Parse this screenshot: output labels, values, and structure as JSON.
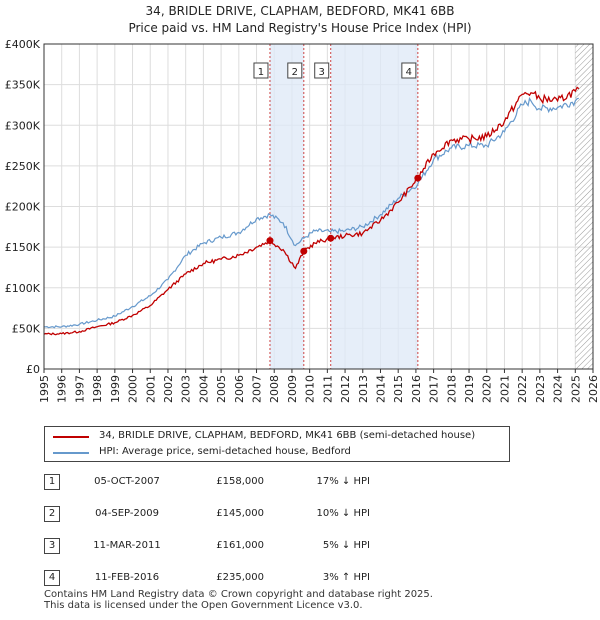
{
  "header": {
    "title_line1": "34, BRIDLE DRIVE, CLAPHAM, BEDFORD, MK41 6BB",
    "title_line2": "Price paid vs. HM Land Registry's House Price Index (HPI)"
  },
  "legend": {
    "items": [
      {
        "label": "34, BRIDLE DRIVE, CLAPHAM, BEDFORD, MK41 6BB (semi-detached house)",
        "color": "#c00000"
      },
      {
        "label": "HPI: Average price, semi-detached house, Bedford",
        "color": "#6699cc"
      }
    ]
  },
  "sales": [
    {
      "num": "1",
      "date": "05-OCT-2007",
      "price": "£158,000",
      "hpi": "17% ↓ HPI"
    },
    {
      "num": "2",
      "date": "04-SEP-2009",
      "price": "£145,000",
      "hpi": "10% ↓ HPI"
    },
    {
      "num": "3",
      "date": "11-MAR-2011",
      "price": "£161,000",
      "hpi": "5% ↓ HPI"
    },
    {
      "num": "4",
      "date": "11-FEB-2016",
      "price": "£235,000",
      "hpi": "3% ↑ HPI"
    }
  ],
  "footer": {
    "line1": "Contains HM Land Registry data © Crown copyright and database right 2025.",
    "line2": "This data is licensed under the Open Government Licence v3.0."
  },
  "chart_data": {
    "type": "line",
    "title": "Price paid vs. HM Land Registry's House Price Index (HPI)",
    "ylim": [
      0,
      400000
    ],
    "xlim": [
      1995,
      2026
    ],
    "y_ticks": [
      0,
      50000,
      100000,
      150000,
      200000,
      250000,
      300000,
      350000,
      400000
    ],
    "y_tick_labels": [
      "£0",
      "£50K",
      "£100K",
      "£150K",
      "£200K",
      "£250K",
      "£300K",
      "£350K",
      "£400K"
    ],
    "x_ticks": [
      1995,
      1996,
      1997,
      1998,
      1999,
      2000,
      2001,
      2002,
      2003,
      2004,
      2005,
      2006,
      2007,
      2008,
      2009,
      2010,
      2011,
      2012,
      2013,
      2014,
      2015,
      2016,
      2017,
      2018,
      2019,
      2020,
      2021,
      2022,
      2023,
      2024,
      2025,
      2026
    ],
    "series": [
      {
        "name": "34, BRIDLE DRIVE, CLAPHAM, BEDFORD, MK41 6BB (semi-detached house)",
        "color": "#c00000",
        "points": [
          [
            1995.0,
            43000
          ],
          [
            1996.0,
            43500
          ],
          [
            1997.0,
            46000
          ],
          [
            1998.0,
            52000
          ],
          [
            1999.0,
            57000
          ],
          [
            2000.0,
            66000
          ],
          [
            2001.0,
            78000
          ],
          [
            2002.0,
            98000
          ],
          [
            2003.0,
            117000
          ],
          [
            2004.0,
            130000
          ],
          [
            2005.0,
            135000
          ],
          [
            2006.0,
            140000
          ],
          [
            2007.0,
            150000
          ],
          [
            2007.76,
            158000
          ],
          [
            2008.5,
            147000
          ],
          [
            2009.2,
            124000
          ],
          [
            2009.67,
            145000
          ],
          [
            2010.3,
            155000
          ],
          [
            2011.19,
            161000
          ],
          [
            2012.0,
            164000
          ],
          [
            2013.0,
            167000
          ],
          [
            2014.0,
            183000
          ],
          [
            2015.0,
            205000
          ],
          [
            2016.11,
            235000
          ],
          [
            2017.0,
            265000
          ],
          [
            2018.0,
            282000
          ],
          [
            2019.0,
            283000
          ],
          [
            2020.0,
            286000
          ],
          [
            2021.0,
            305000
          ],
          [
            2022.0,
            338000
          ],
          [
            2022.5,
            340000
          ],
          [
            2023.0,
            333000
          ],
          [
            2024.0,
            330000
          ],
          [
            2025.0,
            342000
          ],
          [
            2025.2,
            345000
          ]
        ]
      },
      {
        "name": "HPI: Average price, semi-detached house, Bedford",
        "color": "#6699cc",
        "points": [
          [
            1995.0,
            52000
          ],
          [
            1996.0,
            52000
          ],
          [
            1997.0,
            55000
          ],
          [
            1998.0,
            60000
          ],
          [
            1999.0,
            65000
          ],
          [
            2000.0,
            77000
          ],
          [
            2001.0,
            90000
          ],
          [
            2002.0,
            110000
          ],
          [
            2003.0,
            140000
          ],
          [
            2004.0,
            155000
          ],
          [
            2005.0,
            162000
          ],
          [
            2006.0,
            168000
          ],
          [
            2007.0,
            185000
          ],
          [
            2007.76,
            190000
          ],
          [
            2008.5,
            180000
          ],
          [
            2009.2,
            152000
          ],
          [
            2009.67,
            161000
          ],
          [
            2010.3,
            170000
          ],
          [
            2011.19,
            169000
          ],
          [
            2012.0,
            170000
          ],
          [
            2013.0,
            175000
          ],
          [
            2014.0,
            190000
          ],
          [
            2015.0,
            210000
          ],
          [
            2016.11,
            228000
          ],
          [
            2017.0,
            258000
          ],
          [
            2018.0,
            272000
          ],
          [
            2019.0,
            275000
          ],
          [
            2020.0,
            275000
          ],
          [
            2021.0,
            292000
          ],
          [
            2022.0,
            325000
          ],
          [
            2022.5,
            330000
          ],
          [
            2023.0,
            320000
          ],
          [
            2024.0,
            322000
          ],
          [
            2025.0,
            330000
          ],
          [
            2025.2,
            333000
          ]
        ]
      }
    ],
    "sale_markers": [
      {
        "label": "1",
        "x": 2007.76,
        "y": 158000
      },
      {
        "label": "2",
        "x": 2009.67,
        "y": 145000
      },
      {
        "label": "3",
        "x": 2011.19,
        "y": 161000
      },
      {
        "label": "4",
        "x": 2016.11,
        "y": 235000
      }
    ],
    "shaded_spans": [
      [
        2007.76,
        2009.67
      ],
      [
        2011.19,
        2016.11
      ]
    ],
    "hatched_from": 2025.0
  }
}
